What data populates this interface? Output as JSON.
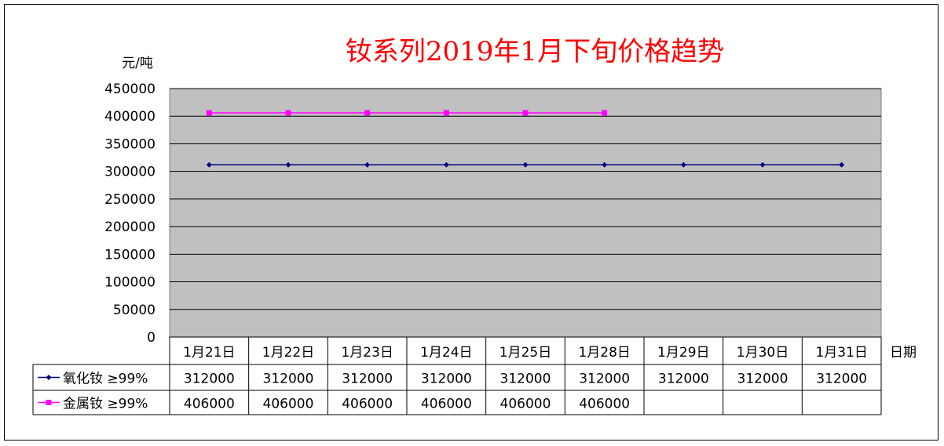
{
  "chart_data": {
    "type": "line",
    "title": "钕系列2019年1月下旬价格趋势",
    "ylabel": "元/吨",
    "xlabel": "日期",
    "ylim": [
      0,
      450000
    ],
    "y_ticks": [
      "450000",
      "400000",
      "350000",
      "300000",
      "250000",
      "200000",
      "150000",
      "100000",
      "50000",
      "0"
    ],
    "y_tick_values": [
      450000,
      400000,
      350000,
      300000,
      250000,
      200000,
      150000,
      100000,
      50000,
      0
    ],
    "categories": [
      "1月21日",
      "1月22日",
      "1月23日",
      "1月24日",
      "1月25日",
      "1月28日",
      "1月29日",
      "1月30日",
      "1月31日"
    ],
    "series": [
      {
        "name": "氧化钕 ≥99%",
        "color": "#000080",
        "marker": "diamond",
        "values": [
          312000,
          312000,
          312000,
          312000,
          312000,
          312000,
          312000,
          312000,
          312000
        ]
      },
      {
        "name": "金属钕 ≥99%",
        "color": "#ff00ff",
        "marker": "square",
        "values": [
          406000,
          406000,
          406000,
          406000,
          406000,
          406000,
          null,
          null,
          null
        ]
      }
    ],
    "table": [
      [
        "312000",
        "312000",
        "312000",
        "312000",
        "312000",
        "312000",
        "312000",
        "312000",
        "312000"
      ],
      [
        "406000",
        "406000",
        "406000",
        "406000",
        "406000",
        "406000",
        "",
        "",
        ""
      ]
    ],
    "plot_background": "#c0c0c0",
    "grid": true,
    "legend": "data-table"
  }
}
